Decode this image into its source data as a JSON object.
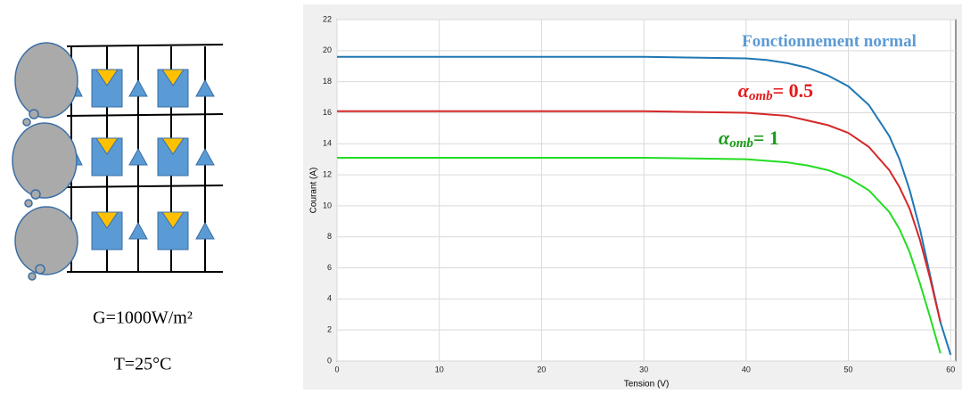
{
  "diagram": {
    "irradiance": "G=1000W/m²",
    "temperature": "T=25°C"
  },
  "chart_data": {
    "type": "line",
    "x_label": "Tension (V)",
    "y_label": "Courant (A)",
    "x": [
      0,
      10,
      20,
      30,
      40,
      42,
      44,
      46,
      48,
      50,
      52,
      54,
      55,
      56,
      57,
      58,
      59,
      60
    ],
    "series": [
      {
        "name": "Fonctionnement normal",
        "color": "#1f77b4",
        "values": [
          19.6,
          19.6,
          19.6,
          19.6,
          19.5,
          19.4,
          19.2,
          18.9,
          18.4,
          17.7,
          16.5,
          14.5,
          13.0,
          11.0,
          8.5,
          5.5,
          2.5,
          0.4
        ]
      },
      {
        "name": "= 0.5",
        "color": "#d62728",
        "values": [
          16.1,
          16.1,
          16.1,
          16.1,
          16.0,
          15.9,
          15.8,
          15.5,
          15.2,
          14.7,
          13.8,
          12.3,
          11.2,
          9.8,
          7.8,
          5.3,
          2.5,
          null
        ]
      },
      {
        "name": "= 1",
        "color": "#22dd22",
        "values": [
          13.1,
          13.1,
          13.1,
          13.1,
          13.0,
          12.9,
          12.8,
          12.6,
          12.3,
          11.8,
          11.0,
          9.6,
          8.5,
          7.0,
          5.0,
          2.8,
          0.5,
          null
        ]
      }
    ],
    "annotations": [
      {
        "text": "Fonctionnement normal",
        "color": "#5b9bd5"
      },
      {
        "symbol": "α",
        "subscript": "omb",
        "text": "= 0.5",
        "color": "#e31a1c"
      },
      {
        "symbol": "α",
        "subscript": "omb",
        "text": "= 1",
        "color": "#1a9a1a"
      }
    ],
    "xlim": [
      0,
      60.5
    ],
    "ylim": [
      0,
      22
    ],
    "xticks": [
      0,
      10,
      20,
      30,
      40,
      50,
      60
    ],
    "yticks": [
      0,
      2,
      4,
      6,
      8,
      10,
      12,
      14,
      16,
      18,
      20,
      22
    ],
    "grid": true
  }
}
